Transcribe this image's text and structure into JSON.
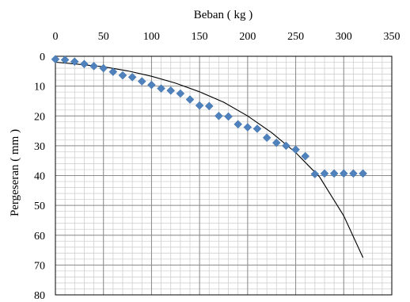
{
  "chart_data": {
    "type": "scatter",
    "xlabel": "Beban ( kg )",
    "ylabel": "Pergeseran ( mm )",
    "xlim": [
      0,
      350
    ],
    "ylim": [
      0,
      80
    ],
    "y_inverted": true,
    "x_axis_position": "top",
    "x_ticks": [
      0,
      50,
      100,
      150,
      200,
      250,
      300,
      350
    ],
    "y_ticks": [
      0,
      10,
      20,
      30,
      40,
      50,
      60,
      70,
      80
    ],
    "grid": "on (major and minor)",
    "marker_color": "#4f81bd",
    "series": [
      {
        "marker": "diamond",
        "x": [
          0,
          10,
          20,
          30,
          40,
          50,
          60,
          70,
          80,
          90,
          100,
          110,
          120,
          130,
          140,
          150,
          160,
          170,
          180,
          190,
          200,
          210,
          220,
          230,
          240,
          250,
          260,
          270,
          280,
          290,
          300,
          310,
          320
        ],
        "y": [
          1,
          1.2,
          1.8,
          2.6,
          3.3,
          4,
          5.2,
          6.4,
          7,
          8.4,
          9.6,
          10.8,
          11.5,
          12.5,
          14.5,
          16.5,
          16.7,
          20,
          20.2,
          22.8,
          23.8,
          24.3,
          27.3,
          29,
          30,
          31.3,
          33.5,
          39.5,
          39.3,
          39.3,
          39.3,
          39.3,
          39.3
        ]
      },
      {
        "type": "line",
        "color": "#000000",
        "x": [
          0,
          25,
          50,
          75,
          100,
          125,
          150,
          175,
          200,
          225,
          250,
          275,
          300,
          320
        ],
        "y": [
          2.0,
          2.7,
          3.5,
          4.9,
          6.7,
          9.0,
          11.9,
          15.4,
          20.0,
          25.6,
          32.3,
          40.5,
          53.5,
          67.5
        ]
      }
    ]
  }
}
